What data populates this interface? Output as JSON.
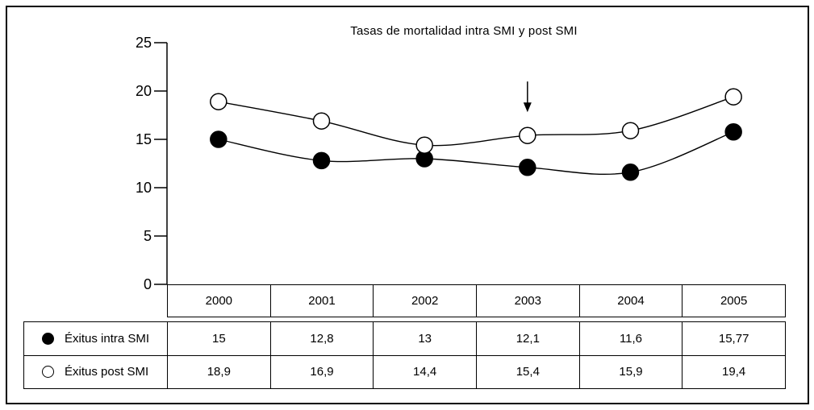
{
  "chart_data": {
    "type": "line",
    "title": "Tasas de mortalidad intra SMI y post SMI",
    "categories": [
      "2000",
      "2001",
      "2002",
      "2003",
      "2004",
      "2005"
    ],
    "series": [
      {
        "id": "intra",
        "name": "Éxitus intra SMI",
        "marker": "filled-circle",
        "line_color": "#000000",
        "marker_fill": "#000000",
        "values": [
          15,
          12.8,
          13,
          12.1,
          11.6,
          15.77
        ],
        "values_display": [
          "15",
          "12,8",
          "13",
          "12,1",
          "11,6",
          "15,77"
        ]
      },
      {
        "id": "post",
        "name": "Éxitus post SMI",
        "marker": "open-circle",
        "line_color": "#000000",
        "marker_fill": "#ffffff",
        "values": [
          18.9,
          16.9,
          14.4,
          15.4,
          15.9,
          19.4
        ],
        "values_display": [
          "18,9",
          "16,9",
          "14,4",
          "15,4",
          "15,9",
          "19,4"
        ]
      }
    ],
    "ylim": [
      0,
      25
    ],
    "yticks": [
      25,
      20,
      15,
      10,
      5,
      0
    ],
    "xlabel": "",
    "ylabel": "",
    "grid": false,
    "legend_position": "table-left",
    "decimal_separator": ",",
    "annotations": [
      {
        "type": "arrow-down",
        "series_index": 1,
        "point_index": 3,
        "target_category": "2003"
      }
    ],
    "colors": {
      "foreground": "#000000",
      "background": "#ffffff"
    }
  }
}
